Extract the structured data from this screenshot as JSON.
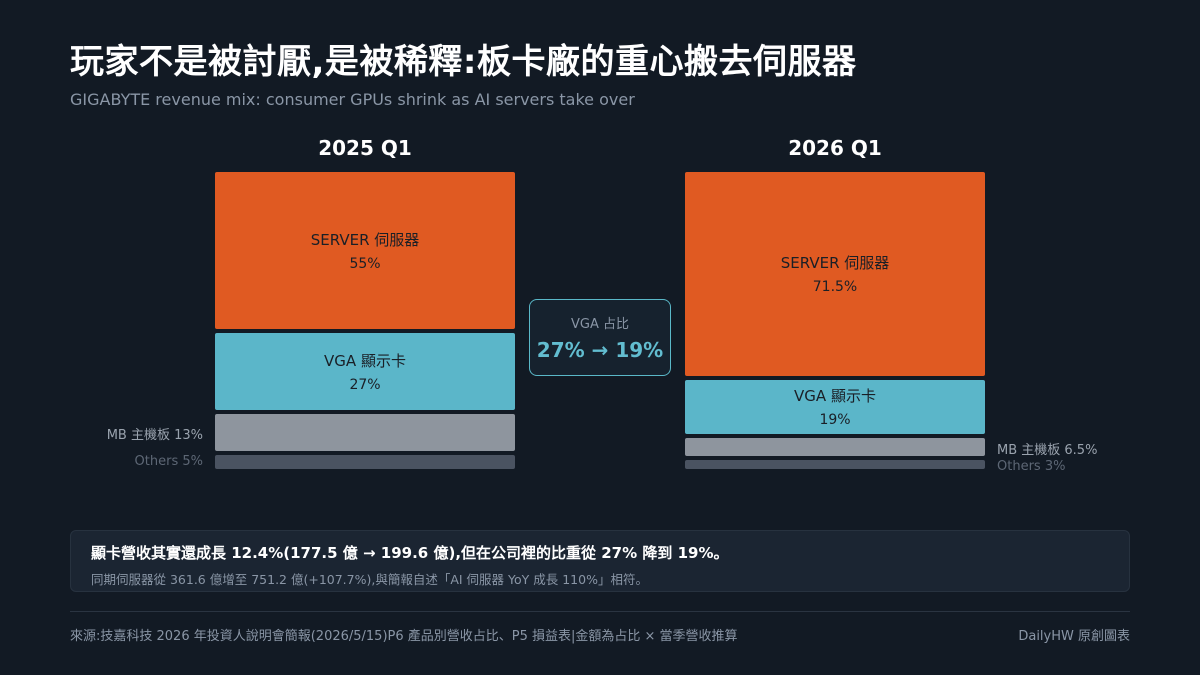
{
  "title": "玩家不是被討厭,是被稀釋:板卡廠的重心搬去伺服器",
  "subtitle": "GIGABYTE revenue mix: consumer GPUs shrink as AI servers take over",
  "chart_data": {
    "type": "bar",
    "stacked": true,
    "unit": "%",
    "categories": [
      "2025 Q1",
      "2026 Q1"
    ],
    "series": [
      {
        "name": "SERVER 伺服器",
        "color": "#e05a22",
        "values": [
          55,
          71.5
        ],
        "labels": [
          "55%",
          "71.5%"
        ]
      },
      {
        "name": "VGA 顯示卡",
        "color": "#5bb6c9",
        "values": [
          27,
          19
        ],
        "labels": [
          "27%",
          "19%"
        ]
      },
      {
        "name": "MB 主機板",
        "color": "#8e959e",
        "values": [
          13,
          6.5
        ],
        "labels": [
          "13%",
          "6.5%"
        ]
      },
      {
        "name": "Others",
        "color": "#4a5361",
        "values": [
          5,
          3
        ],
        "labels": [
          "5%",
          "3%"
        ]
      }
    ],
    "side_labels": {
      "2025 Q1": {
        "mb": "MB 主機板 13%",
        "others": "Others 5%"
      },
      "2026 Q1": {
        "mb": "MB 主機板 6.5%",
        "others": "Others 3%"
      }
    }
  },
  "callout": {
    "label": "VGA 占比",
    "value": "27% → 19%"
  },
  "note": {
    "main": "顯卡營收其實還成長 12.4%(177.5 億 → 199.6 億),但在公司裡的比重從 27% 降到 19%。",
    "sub": "同期伺服器從 361.6 億增至 751.2 億(+107.7%),與簡報自述「AI 伺服器 YoY 成長 110%」相符。"
  },
  "footer": {
    "source": "來源:技嘉科技 2026 年投資人說明會簡報(2026/5/15)P6 產品別營收占比、P5 損益表|金額為占比 × 當季營收推算",
    "credit": "DailyHW 原創圖表"
  }
}
